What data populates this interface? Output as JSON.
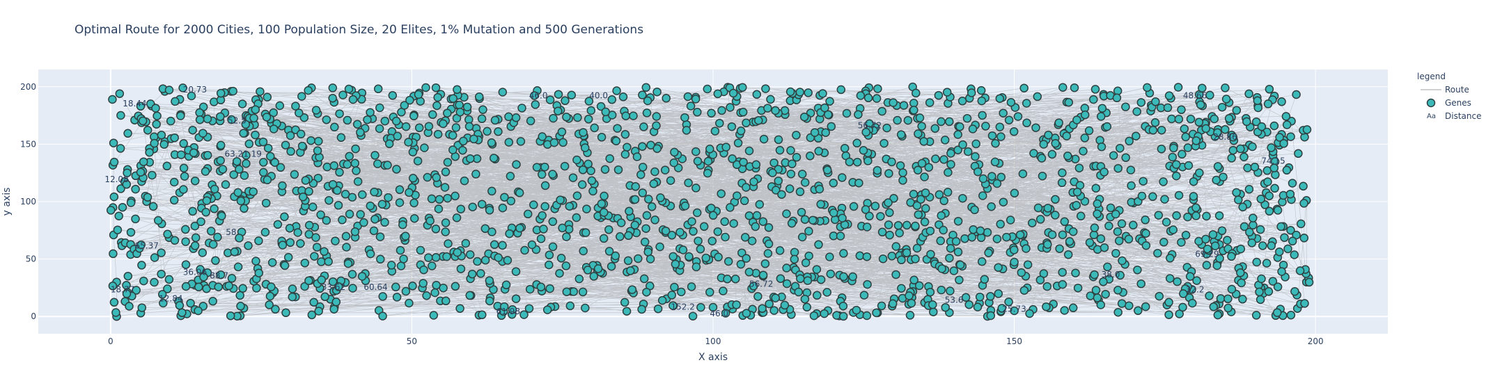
{
  "chart_data": {
    "type": "scatter",
    "title": "Optimal Route for 2000 Cities, 100 Population Size, 20 Elites, 1% Mutation and 500 Generations",
    "xlabel": "X axis",
    "ylabel": "y axis",
    "xlim": [
      -12,
      212
    ],
    "ylim": [
      -15,
      215
    ],
    "xticks": [
      0,
      50,
      100,
      150,
      200
    ],
    "yticks": [
      0,
      50,
      100,
      150,
      200
    ],
    "grid": true,
    "legend_title": "legend",
    "legend_position": "top-right",
    "series": [
      {
        "name": "Route",
        "mode": "lines",
        "color": "#a0a0a0"
      },
      {
        "name": "Genes",
        "mode": "markers",
        "color": "#3cb9b9",
        "outline": "#2f3f3f"
      },
      {
        "name": "Distance",
        "mode": "text",
        "color": "#2a3f5f"
      }
    ],
    "cities_count": 2000,
    "sample_points": [
      {
        "x": 0.3,
        "y": 189
      },
      {
        "x": 1.5,
        "y": 194
      },
      {
        "x": 4,
        "y": 171
      },
      {
        "x": 9,
        "y": 196
      },
      {
        "x": 12,
        "y": 199
      },
      {
        "x": 20,
        "y": 196
      },
      {
        "x": 26,
        "y": 191
      },
      {
        "x": 40,
        "y": 197
      },
      {
        "x": 0.5,
        "y": 151
      },
      {
        "x": 0.5,
        "y": 71
      },
      {
        "x": 1,
        "y": 30
      },
      {
        "x": 1,
        "y": 0
      },
      {
        "x": 5,
        "y": 3
      },
      {
        "x": 14,
        "y": 6
      },
      {
        "x": 58,
        "y": 7
      },
      {
        "x": 100,
        "y": 8
      },
      {
        "x": 150,
        "y": 5
      },
      {
        "x": 186,
        "y": 4
      },
      {
        "x": 197,
        "y": 7
      },
      {
        "x": 198.5,
        "y": 101
      },
      {
        "x": 198.5,
        "y": 30
      },
      {
        "x": 196,
        "y": 170
      },
      {
        "x": 185,
        "y": 199
      },
      {
        "x": 176,
        "y": 190
      }
    ],
    "distance_labels": [
      {
        "x": 4,
        "y": 183,
        "text": "18.44"
      },
      {
        "x": 14,
        "y": 195,
        "text": "20.73"
      },
      {
        "x": 21,
        "y": 168,
        "text": "52.5"
      },
      {
        "x": 22,
        "y": 139,
        "text": "63.21.19"
      },
      {
        "x": 1,
        "y": 117,
        "text": "12.08"
      },
      {
        "x": 6,
        "y": 59,
        "text": "65.37"
      },
      {
        "x": 14,
        "y": 36,
        "text": "36.06"
      },
      {
        "x": 20,
        "y": 71,
        "text": "58"
      },
      {
        "x": 2,
        "y": 21,
        "text": "18.77"
      },
      {
        "x": 10,
        "y": 13,
        "text": "12.84"
      },
      {
        "x": 18,
        "y": 33,
        "text": "88.7"
      },
      {
        "x": 37,
        "y": 23,
        "text": "33.62"
      },
      {
        "x": 44,
        "y": 23,
        "text": "60.64"
      },
      {
        "x": 66,
        "y": 2,
        "text": "61.98"
      },
      {
        "x": 101,
        "y": 0,
        "text": "46.0"
      },
      {
        "x": 95,
        "y": 6,
        "text": "152.2"
      },
      {
        "x": 140,
        "y": 12,
        "text": "53.6"
      },
      {
        "x": 150,
        "y": 4,
        "text": "25.73"
      },
      {
        "x": 180,
        "y": 21,
        "text": "32.2"
      },
      {
        "x": 182,
        "y": 52,
        "text": "69.29"
      },
      {
        "x": 193,
        "y": 133,
        "text": "74.15"
      },
      {
        "x": 185,
        "y": 154,
        "text": "28.86"
      },
      {
        "x": 180,
        "y": 190,
        "text": "48.66"
      },
      {
        "x": 71,
        "y": 190,
        "text": "46.0"
      },
      {
        "x": 81,
        "y": 190,
        "text": "40.0"
      },
      {
        "x": 126,
        "y": 164,
        "text": "56.72"
      },
      {
        "x": 108,
        "y": 26,
        "text": "56.72"
      },
      {
        "x": 166,
        "y": 34,
        "text": "38.0"
      }
    ]
  }
}
